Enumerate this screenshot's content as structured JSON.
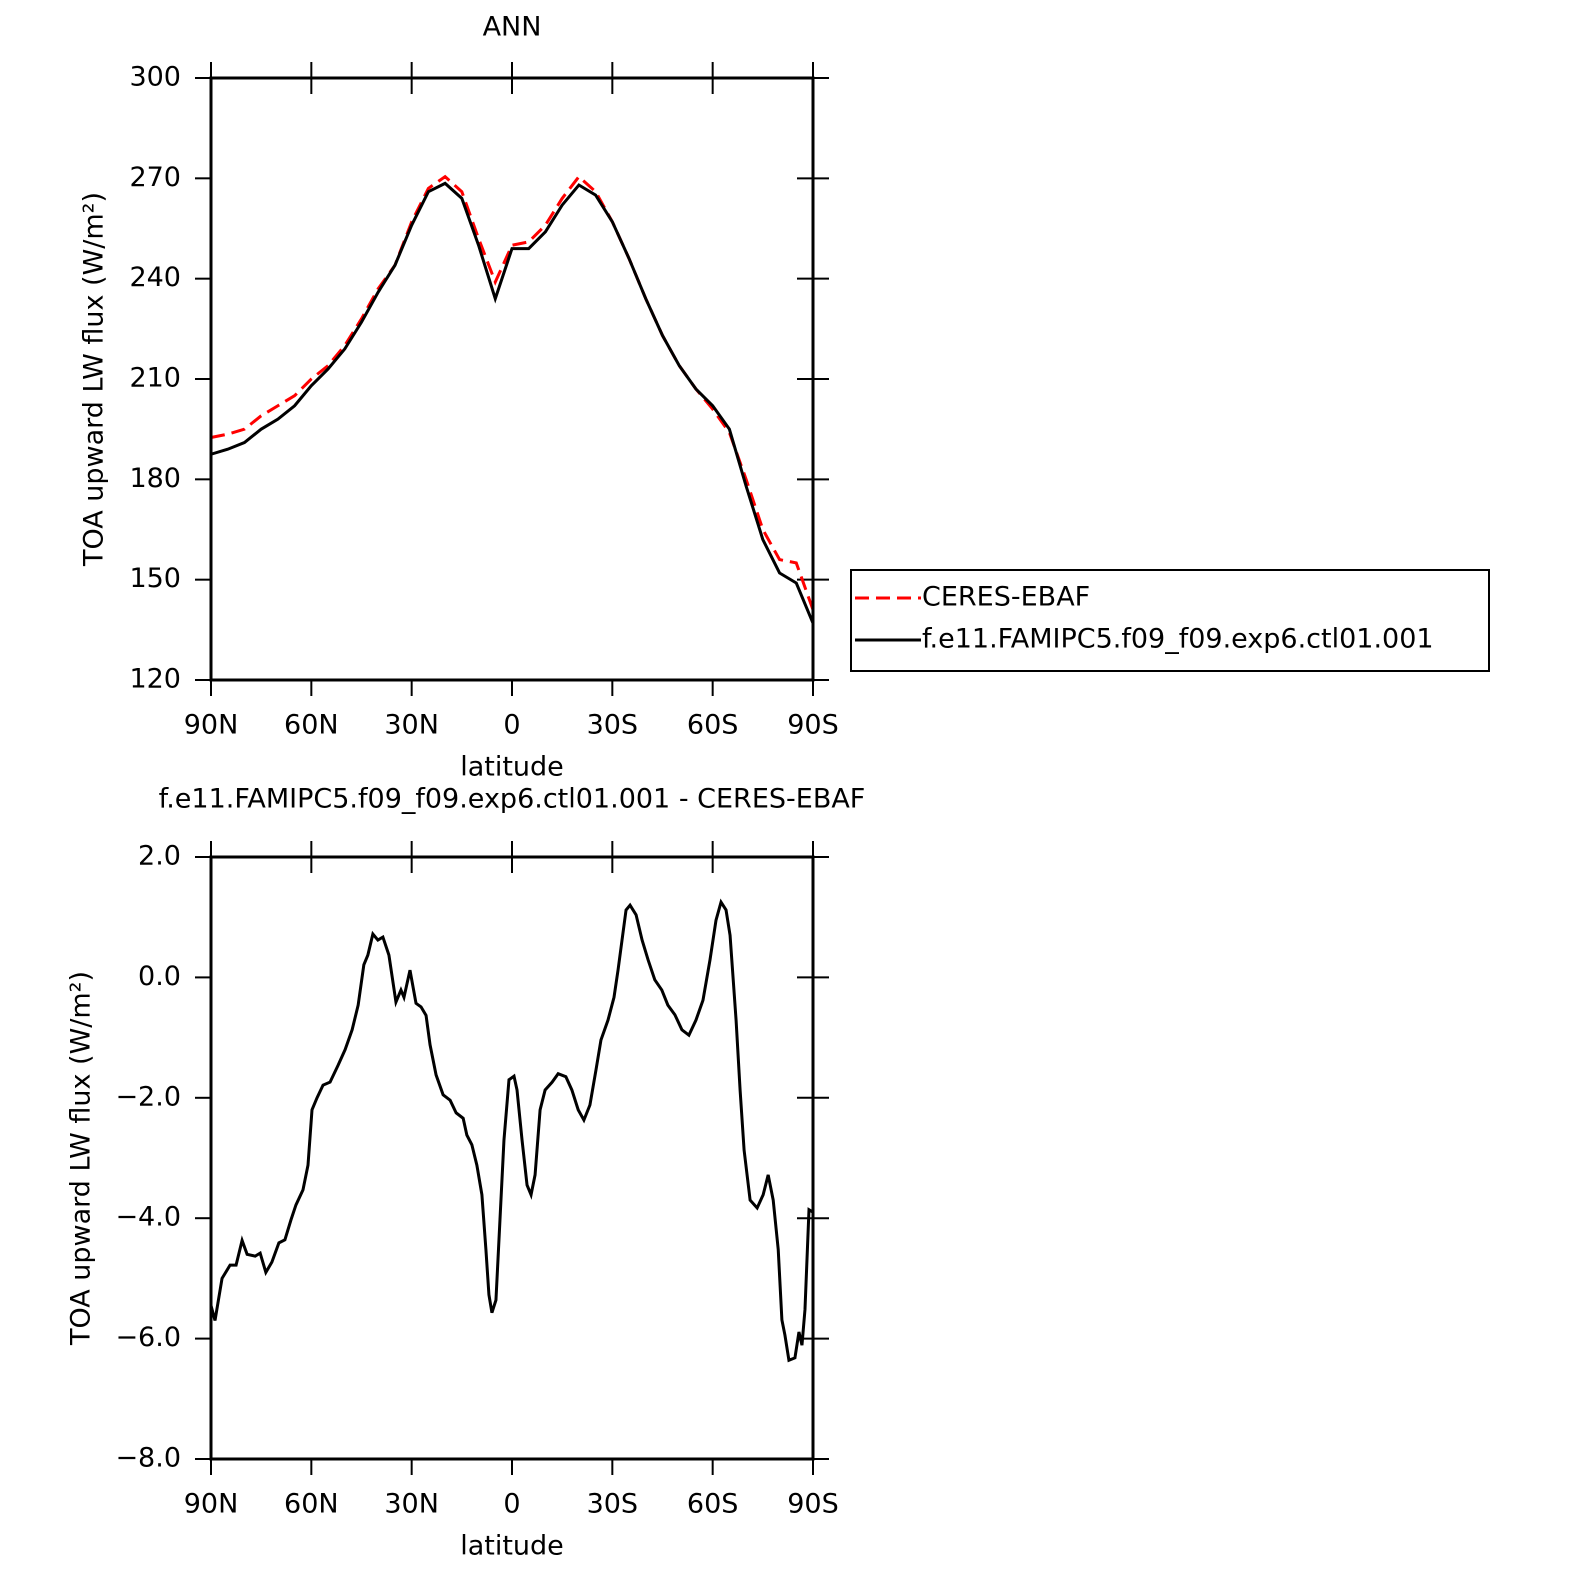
{
  "chart_data": [
    {
      "type": "line",
      "title": "ANN",
      "x_label": "latitude",
      "y_label": "TOA upward LW flux (W/m²)",
      "x": [
        90,
        85,
        80,
        75,
        70,
        65,
        60,
        55,
        50,
        45,
        40,
        35,
        30,
        25,
        20,
        15,
        10,
        5,
        0,
        -5,
        -10,
        -15,
        -20,
        -25,
        -30,
        -35,
        -40,
        -45,
        -50,
        -55,
        -60,
        -65,
        -70,
        -75,
        -80,
        -85,
        -90
      ],
      "series": [
        {
          "name": "CERES-EBAF",
          "color": "#ff0000",
          "dash": "dashed",
          "values": [
            192.5,
            193.5,
            195,
            199,
            202,
            205,
            210,
            214,
            220,
            228,
            237,
            244,
            257,
            267,
            270.5,
            266,
            252,
            239,
            250,
            251,
            256,
            264,
            270.5,
            266,
            257,
            246,
            234,
            223,
            214,
            207,
            201,
            194,
            180,
            165,
            156,
            155,
            141
          ]
        },
        {
          "name": "f.e11.FAMIPC5.f09_f09.exp6.ctl01.001",
          "color": "#000000",
          "dash": "solid",
          "values": [
            187.5,
            189,
            191,
            195,
            198,
            202,
            208,
            213,
            219,
            227,
            236,
            244,
            256,
            266,
            268.5,
            264,
            250,
            234,
            249,
            249,
            254,
            262,
            268,
            265,
            257,
            246,
            234,
            223,
            214,
            207,
            202,
            195,
            178,
            162,
            152,
            149,
            137
          ]
        }
      ],
      "xlim": [
        90,
        -90
      ],
      "xticks": [
        {
          "value": 90,
          "label": "90N"
        },
        {
          "value": 60,
          "label": "60N"
        },
        {
          "value": 30,
          "label": "30N"
        },
        {
          "value": 0,
          "label": "0"
        },
        {
          "value": -30,
          "label": "30S"
        },
        {
          "value": -60,
          "label": "60S"
        },
        {
          "value": -90,
          "label": "90S"
        }
      ],
      "ylim": [
        120,
        300
      ],
      "yticks": [
        120,
        150,
        180,
        210,
        240,
        270,
        300
      ],
      "legend": "right"
    },
    {
      "type": "line",
      "title": "f.e11.FAMIPC5.f09_f09.exp6.ctl01.001 - CERES-EBAF",
      "x_label": "latitude",
      "y_label": "TOA upward LW flux (W/m²)",
      "x": [
        90,
        88.8,
        86.7,
        84.3,
        82.5,
        80.7,
        79.2,
        76.8,
        75.3,
        73.6,
        71.8,
        69.7,
        67.9,
        66.1,
        64.6,
        62.5,
        61,
        59.8,
        58.3,
        56.5,
        54.4,
        52,
        49.9,
        47.8,
        46,
        44.3,
        43.1,
        41.6,
        40.1,
        38.6,
        36.8,
        34.7,
        33.2,
        32.3,
        30.5,
        28.7,
        27.2,
        25.7,
        24.5,
        22.7,
        20.6,
        18.5,
        16.7,
        14.6,
        13.5,
        12,
        10.5,
        9,
        7.8,
        6.9,
        6,
        4.8,
        3.6,
        2.4,
        0.9,
        -0.6,
        -1.5,
        -3,
        -4.5,
        -5.7,
        -6.9,
        -8.4,
        -9.9,
        -12,
        -13.8,
        -16.1,
        -17.9,
        -19.8,
        -21.5,
        -23.3,
        -25.1,
        -26.6,
        -28.7,
        -30.5,
        -31.7,
        -32.9,
        -34.1,
        -35.3,
        -37.1,
        -38.9,
        -40.7,
        -42.7,
        -44.8,
        -46.6,
        -48.7,
        -50.8,
        -52.9,
        -55,
        -57.1,
        -59.2,
        -61,
        -62.5,
        -64,
        -65.2,
        -67,
        -68.2,
        -69.4,
        -71.2,
        -73.3,
        -75.1,
        -76.6,
        -78.1,
        -79.6,
        -80.7,
        -81.6,
        -82.8,
        -84.6,
        -85.8,
        -86.7,
        -87.6,
        -88.8,
        -90
      ],
      "series": [
        {
          "color": "#000000",
          "dash": "solid",
          "values": [
            -5.45,
            -5.7,
            -5.0,
            -4.78,
            -4.78,
            -4.37,
            -4.6,
            -4.63,
            -4.58,
            -4.9,
            -4.73,
            -4.41,
            -4.36,
            -4.03,
            -3.78,
            -3.53,
            -3.12,
            -2.2,
            -2.0,
            -1.79,
            -1.74,
            -1.46,
            -1.2,
            -0.87,
            -0.46,
            0.21,
            0.37,
            0.72,
            0.62,
            0.67,
            0.37,
            -0.41,
            -0.21,
            -0.33,
            0.12,
            -0.43,
            -0.49,
            -0.63,
            -1.12,
            -1.62,
            -1.95,
            -2.04,
            -2.25,
            -2.34,
            -2.62,
            -2.78,
            -3.12,
            -3.61,
            -4.52,
            -5.27,
            -5.57,
            -5.36,
            -4.03,
            -2.7,
            -1.7,
            -1.64,
            -1.87,
            -2.7,
            -3.45,
            -3.61,
            -3.28,
            -2.2,
            -1.87,
            -1.74,
            -1.6,
            -1.65,
            -1.87,
            -2.2,
            -2.37,
            -2.12,
            -1.54,
            -1.04,
            -0.71,
            -0.33,
            0.12,
            0.62,
            1.12,
            1.2,
            1.04,
            0.62,
            0.29,
            -0.04,
            -0.21,
            -0.46,
            -0.62,
            -0.87,
            -0.96,
            -0.71,
            -0.38,
            0.29,
            0.95,
            1.25,
            1.12,
            0.7,
            -0.71,
            -1.87,
            -2.87,
            -3.7,
            -3.83,
            -3.61,
            -3.28,
            -3.7,
            -4.52,
            -5.69,
            -5.94,
            -6.36,
            -6.32,
            -5.89,
            -6.11,
            -5.52,
            -3.86,
            -3.9
          ]
        }
      ],
      "xlim": [
        90,
        -90
      ],
      "xticks": [
        {
          "value": 90,
          "label": "90N"
        },
        {
          "value": 60,
          "label": "60N"
        },
        {
          "value": 30,
          "label": "30N"
        },
        {
          "value": 0,
          "label": "0"
        },
        {
          "value": -30,
          "label": "30S"
        },
        {
          "value": -60,
          "label": "60S"
        },
        {
          "value": -90,
          "label": "90S"
        }
      ],
      "ylim": [
        -8,
        2
      ],
      "yticks": [
        {
          "value": -8,
          "label": "−8.0"
        },
        {
          "value": -6,
          "label": "−6.0"
        },
        {
          "value": -4,
          "label": "−4.0"
        },
        {
          "value": -2,
          "label": "−2.0"
        },
        {
          "value": 0,
          "label": "0.0"
        },
        {
          "value": 2,
          "label": "2.0"
        }
      ]
    }
  ]
}
